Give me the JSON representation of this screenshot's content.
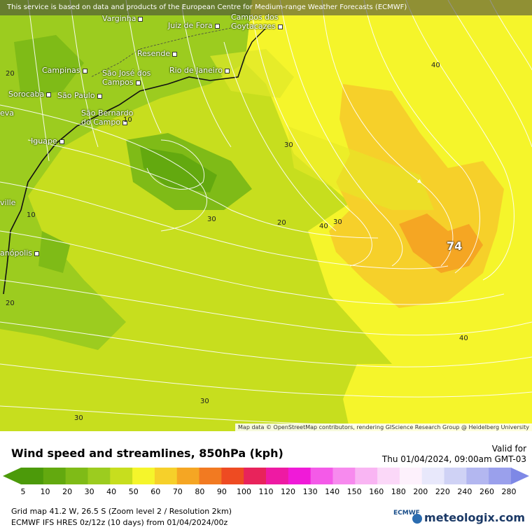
{
  "notice": "This service is based on data and products of the European Centre for Medium-range Weather Forecasts (ECMWF)",
  "attribution": "Map data © OpenStreetMap contributors, rendering GIScience Research Group @ Heidelberg University",
  "cities": [
    {
      "name": "Varginha"
    },
    {
      "name": "Juiz de Fora"
    },
    {
      "name": "Campos dos Goytacazes"
    },
    {
      "name": "Resende"
    },
    {
      "name": "Campinas"
    },
    {
      "name": "São José dos Campos"
    },
    {
      "name": "Rio de Janeiro"
    },
    {
      "name": "Sorocaba"
    },
    {
      "name": "São Paulo"
    },
    {
      "name": "São Bernardo do Campo"
    },
    {
      "name": "Iguape"
    },
    {
      "name": "ville"
    },
    {
      "name": "anópolis"
    },
    {
      "name": "eva"
    }
  ],
  "contour_labels": [
    "20",
    "10",
    "10",
    "20",
    "30",
    "30",
    "20",
    "40",
    "30",
    "40",
    "40",
    "30",
    "30",
    "20"
  ],
  "max_label": "74",
  "legend": {
    "title": "Wind speed and streamlines, 850hPa (kph)",
    "valid_label": "Valid for",
    "valid_time": "Thu 01/04/2024, 09:00am GMT-03",
    "scale": [
      "5",
      "10",
      "20",
      "30",
      "40",
      "50",
      "60",
      "70",
      "80",
      "90",
      "100",
      "110",
      "120",
      "130",
      "140",
      "150",
      "160",
      "180",
      "200",
      "220",
      "240",
      "260",
      "280"
    ],
    "colors": [
      "#4c9a0a",
      "#63a90f",
      "#7fbb17",
      "#9ccc1f",
      "#c7de1e",
      "#f5f52b",
      "#f6d02a",
      "#f5a623",
      "#f27a21",
      "#ee4b22",
      "#e8235b",
      "#ee1aa3",
      "#f01ad8",
      "#f45ae8",
      "#f78aee",
      "#f9b5f3",
      "#fbd8f8",
      "#fdf1fc",
      "#e8e8fb",
      "#cfd2f5",
      "#b3b7f0",
      "#9aa0ec",
      "#7e88e6"
    ],
    "grid_info": "Grid map 41.2 W, 26.5 S (Zoom level 2 / Resolution 2km)",
    "model_info": "ECMWF IFS HRES 0z/12z (10 days) from 01/04/2024/00z",
    "ecmwf": "ECMWF",
    "brand": "meteologix.com"
  }
}
